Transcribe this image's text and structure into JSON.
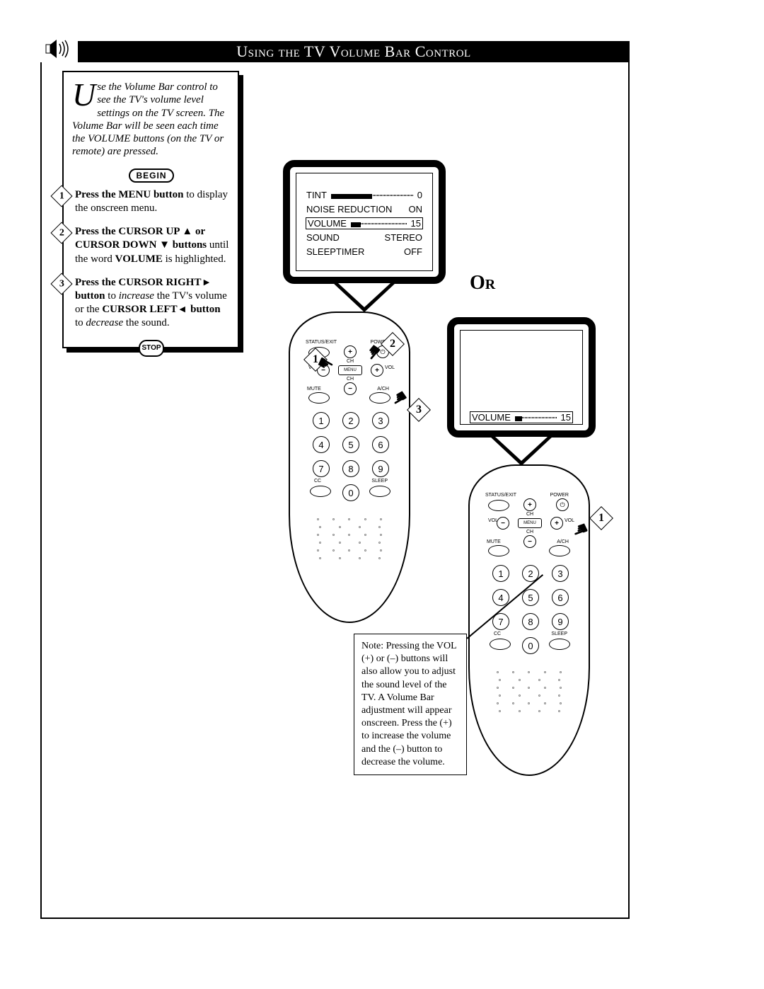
{
  "title": "Using the TV Volume Bar Control",
  "intro": {
    "drop_cap": "U",
    "text": "se the Volume Bar control to see the TV's volume level settings on the TV screen. The Volume Bar will be seen each time the VOLUME buttons (on the TV or remote) are pressed."
  },
  "begin_label": "BEGIN",
  "stop_label": "STOP",
  "steps": [
    {
      "n": "1",
      "html": "<b>Press the MENU button</b> to display the onscreen menu."
    },
    {
      "n": "2",
      "html": "<b>Press the CURSOR UP ▲ or CURSOR DOWN ▼ buttons</b> until the word <b>VOLUME</b> is highlighted."
    },
    {
      "n": "3",
      "html": "<b>Press the CURSOR RIGHT ▸ button</b> to <i>increase</i> the TV's volume or the <b>CURSOR LEFT ◂&nbsp; button</b> to <i>decrease</i> the sound."
    }
  ],
  "tv1": {
    "rows": [
      {
        "label": "TINT",
        "type": "slider",
        "value": "0",
        "fill_pct": 50
      },
      {
        "label": "NOISE REDUCTION",
        "type": "text",
        "value": "ON"
      },
      {
        "label": "VOLUME",
        "type": "slider",
        "value": "15",
        "fill_pct": 18,
        "selected": true
      },
      {
        "label": "SOUND",
        "type": "text",
        "value": "STEREO"
      },
      {
        "label": "SLEEPTIMER",
        "type": "text",
        "value": "OFF"
      }
    ]
  },
  "tv2": {
    "row": {
      "label": "VOLUME",
      "value": "15",
      "fill_pct": 18
    }
  },
  "or_label": "Or",
  "remote": {
    "labels": {
      "status_exit": "STATUS/EXIT",
      "power": "POWER",
      "vol_l": "VOL",
      "vol_r": "VOL",
      "ch": "CH",
      "menu": "MENU",
      "mute": "MUTE",
      "ach": "A/CH",
      "cc": "CC",
      "sleep": "SLEEP"
    },
    "digits": [
      "1",
      "2",
      "3",
      "4",
      "5",
      "6",
      "7",
      "8",
      "9",
      "0"
    ]
  },
  "note": "Note: Pressing the VOL (+) or (–) buttons will also allow you to adjust the sound level of the TV. A Volume Bar adjustment will appear onscreen. Press the (+) to increase the volume and the (–) button to decrease the volume.",
  "callouts_remote1": [
    "1",
    "2",
    "3"
  ],
  "callouts_remote2": [
    "1"
  ],
  "colors": {
    "ink": "#000000",
    "paper": "#ffffff"
  }
}
